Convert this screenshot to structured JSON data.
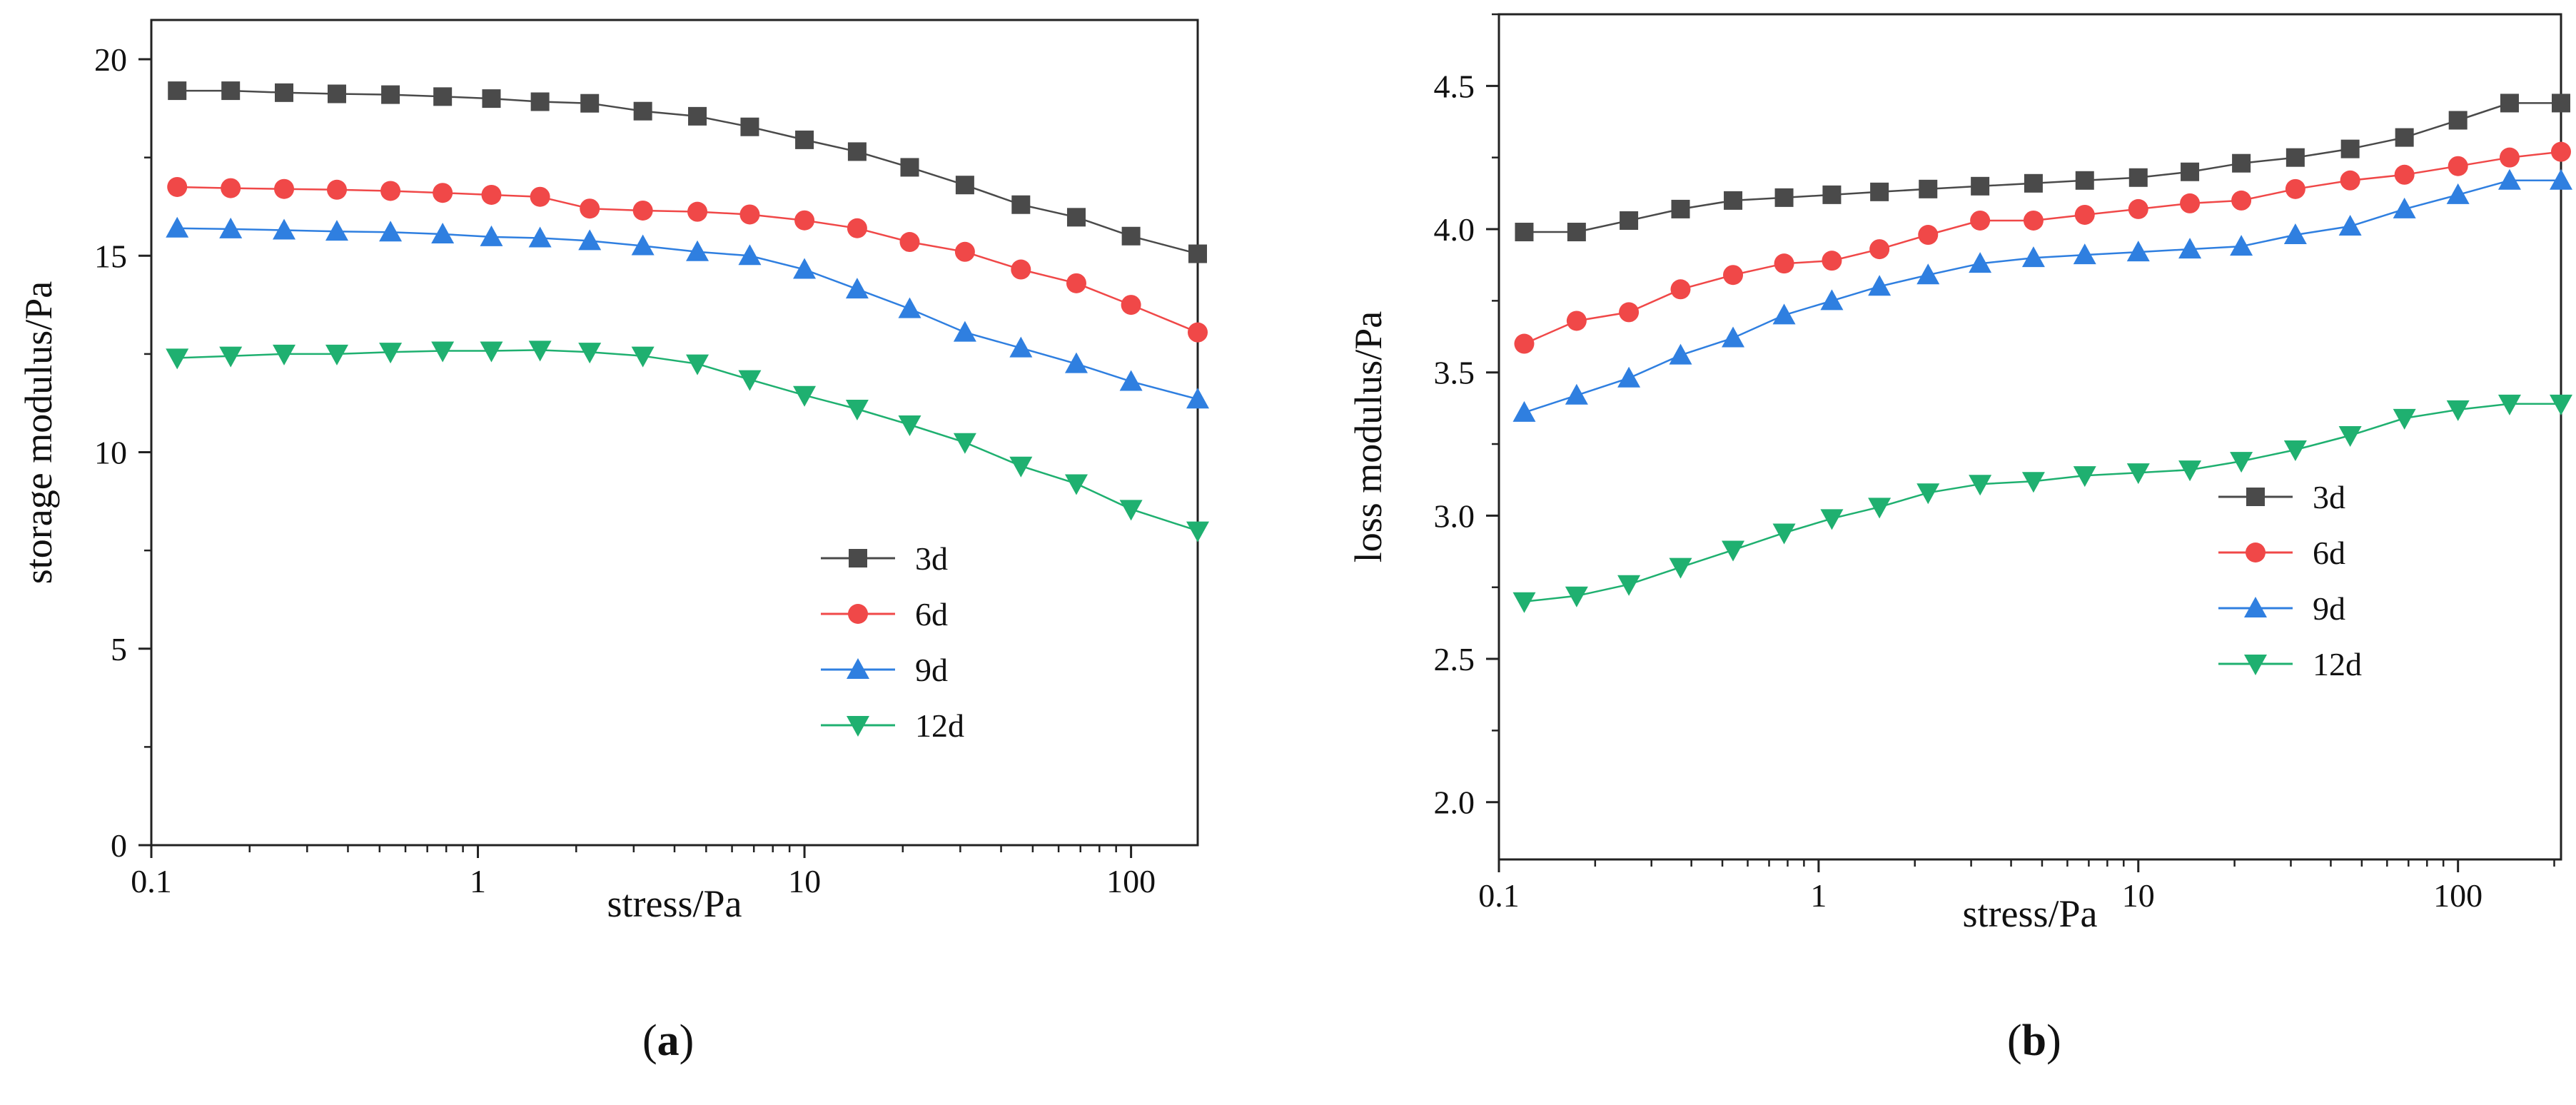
{
  "chart_data": [
    {
      "type": "line",
      "panel_label": "a",
      "xscale": "log",
      "xlim": [
        0.1,
        160
      ],
      "ylim": [
        0,
        21
      ],
      "xlabel": "stress/Pa",
      "ylabel": "storage modulus/Pa",
      "xticks": [
        "0.1",
        "1",
        "10",
        "100"
      ],
      "yticks": [
        "0",
        "5",
        "10",
        "15",
        "20"
      ],
      "legend_position": "center-right",
      "x": [
        0.12,
        0.175,
        0.255,
        0.37,
        0.54,
        0.78,
        1.1,
        1.55,
        2.2,
        3.2,
        4.7,
        6.8,
        10,
        14.5,
        21,
        31,
        46,
        68,
        100,
        160
      ],
      "series": [
        {
          "name": "3d",
          "color": "#4a4a4a",
          "marker": "square",
          "values": [
            19.2,
            19.2,
            19.15,
            19.12,
            19.1,
            19.05,
            19.0,
            18.92,
            18.88,
            18.68,
            18.55,
            18.28,
            17.95,
            17.65,
            17.25,
            16.8,
            16.3,
            15.98,
            15.5,
            15.05
          ]
        },
        {
          "name": "6d",
          "color": "#f04848",
          "marker": "circle",
          "values": [
            16.75,
            16.72,
            16.7,
            16.68,
            16.65,
            16.6,
            16.55,
            16.5,
            16.2,
            16.15,
            16.12,
            16.05,
            15.9,
            15.7,
            15.35,
            15.1,
            14.65,
            14.3,
            13.75,
            13.05
          ]
        },
        {
          "name": "9d",
          "color": "#2f7fe0",
          "marker": "triangle-up",
          "values": [
            15.7,
            15.68,
            15.65,
            15.62,
            15.6,
            15.55,
            15.48,
            15.45,
            15.38,
            15.25,
            15.1,
            15.0,
            14.65,
            14.15,
            13.65,
            13.05,
            12.65,
            12.25,
            11.8,
            11.35
          ]
        },
        {
          "name": "12d",
          "color": "#1fb070",
          "marker": "triangle-down",
          "values": [
            12.4,
            12.45,
            12.5,
            12.5,
            12.55,
            12.58,
            12.58,
            12.6,
            12.55,
            12.45,
            12.25,
            11.85,
            11.45,
            11.1,
            10.7,
            10.25,
            9.65,
            9.2,
            8.55,
            8.0
          ]
        }
      ]
    },
    {
      "type": "line",
      "panel_label": "b",
      "xscale": "log",
      "xlim": [
        0.1,
        210
      ],
      "ylim": [
        1.8,
        4.75
      ],
      "xlabel": "stress/Pa",
      "ylabel": "loss modulus/Pa",
      "xticks": [
        "0.1",
        "1",
        "10",
        "100"
      ],
      "yticks": [
        "2.0",
        "2.5",
        "3.0",
        "3.5",
        "4.0",
        "4.5"
      ],
      "legend_position": "center-right",
      "x": [
        0.12,
        0.175,
        0.255,
        0.37,
        0.54,
        0.78,
        1.1,
        1.55,
        2.2,
        3.2,
        4.7,
        6.8,
        10,
        14.5,
        21,
        31,
        46,
        68,
        100,
        145,
        210
      ],
      "series": [
        {
          "name": "3d",
          "color": "#4a4a4a",
          "marker": "square",
          "values": [
            3.99,
            3.99,
            4.03,
            4.07,
            4.1,
            4.11,
            4.12,
            4.13,
            4.14,
            4.15,
            4.16,
            4.17,
            4.18,
            4.2,
            4.23,
            4.25,
            4.28,
            4.32,
            4.38,
            4.44,
            4.44
          ]
        },
        {
          "name": "6d",
          "color": "#f04848",
          "marker": "circle",
          "values": [
            3.6,
            3.68,
            3.71,
            3.79,
            3.84,
            3.88,
            3.89,
            3.93,
            3.98,
            4.03,
            4.03,
            4.05,
            4.07,
            4.09,
            4.1,
            4.14,
            4.17,
            4.19,
            4.22,
            4.25,
            4.27
          ]
        },
        {
          "name": "9d",
          "color": "#2f7fe0",
          "marker": "triangle-up",
          "values": [
            3.36,
            3.42,
            3.48,
            3.56,
            3.62,
            3.7,
            3.75,
            3.8,
            3.84,
            3.88,
            3.9,
            3.91,
            3.92,
            3.93,
            3.94,
            3.98,
            4.01,
            4.07,
            4.12,
            4.17,
            4.17
          ]
        },
        {
          "name": "12d",
          "color": "#1fb070",
          "marker": "triangle-down",
          "values": [
            2.7,
            2.72,
            2.76,
            2.82,
            2.88,
            2.94,
            2.99,
            3.03,
            3.08,
            3.11,
            3.12,
            3.14,
            3.15,
            3.16,
            3.19,
            3.23,
            3.28,
            3.34,
            3.37,
            3.39,
            3.39
          ]
        }
      ]
    }
  ],
  "captions": [
    "a",
    "b"
  ]
}
